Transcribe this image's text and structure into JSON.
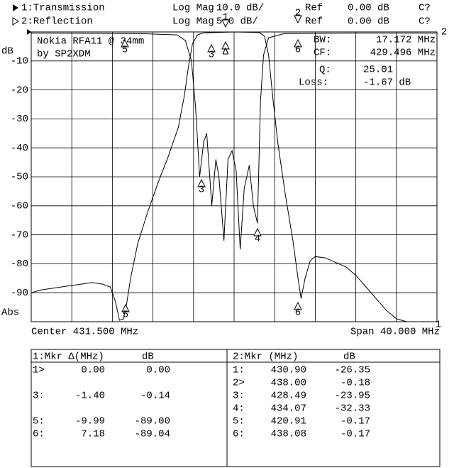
{
  "chart_data": {
    "type": "line",
    "header": [
      {
        "trace": "1:Transmission",
        "format": "Log Mag",
        "scale": "10.0 dB/",
        "ref_label": "Ref",
        "ref": "0.00 dB",
        "cal": "C?"
      },
      {
        "trace": "2:Reflection",
        "format": "Log Mag",
        "scale": "5.0 dB/",
        "ref_label": "Ref",
        "ref": "0.00 dB",
        "cal": "C?"
      }
    ],
    "title": "Nokia RFA11 @ 34mm",
    "subtitle": "by SP2XDM",
    "ylabel": "dB",
    "y_format_label": "Abs",
    "x_start_label": "Center 431.500 MHz",
    "x_end_label": "Span 40.000 MHz",
    "info": [
      {
        "label": "BW:",
        "value": "17.172 MHz"
      },
      {
        "label": "CF:",
        "value": "429.496 MHz"
      },
      {
        "label": "Q:",
        "value": "25.01"
      },
      {
        "label": "Loss:",
        "value": "-1.67 dB"
      }
    ],
    "plot_marker_labels": [
      "1",
      "2",
      "3",
      "Δ",
      "5",
      "6",
      "3",
      "4",
      "5",
      "6",
      "2",
      "1"
    ],
    "xlim": [
      411.5,
      451.5
    ],
    "xticks": [
      411.5,
      415.5,
      419.5,
      423.5,
      427.5,
      431.5,
      435.5,
      439.5,
      443.5,
      447.5,
      451.5
    ],
    "ylim": [
      -100,
      0
    ],
    "yticks": [
      -10,
      -20,
      -30,
      -40,
      -50,
      -60,
      -70,
      -80,
      -90
    ],
    "y2lim": [
      -50,
      0
    ],
    "grid": true,
    "series": [
      {
        "name": "Transmission",
        "color": "#000000",
        "x": [
          411.5,
          412.5,
          413.5,
          414.5,
          415.5,
          416.5,
          417.5,
          418.5,
          419.3,
          419.8,
          420.2,
          420.6,
          420.9,
          421.3,
          422,
          423,
          424,
          425,
          426,
          426.6,
          427,
          427.4,
          427.9,
          428.5,
          431.5,
          434,
          434.5,
          434.9,
          435.3,
          435.8,
          436.5,
          437.3,
          437.8,
          438.1,
          438.5,
          439,
          439.5,
          440.5,
          441.5,
          442.5,
          443.5,
          444.5,
          445.5,
          446.5,
          447.5,
          448.5,
          450,
          451.5
        ],
        "values": [
          -90,
          -89,
          -88.5,
          -88,
          -87.5,
          -87,
          -86.5,
          -87,
          -88,
          -93,
          -99.5,
          -99,
          -94,
          -85,
          -73,
          -62,
          -52,
          -43,
          -33,
          -22,
          -12,
          -4,
          -1,
          -0.3,
          0,
          -0.2,
          -1.5,
          -8,
          -22,
          -38,
          -55,
          -72,
          -85,
          -92,
          -85,
          -79,
          -77.5,
          -78,
          -79.5,
          -81,
          -84,
          -88,
          -92,
          -96,
          -99,
          -100,
          -100,
          -100
        ]
      },
      {
        "name": "Reflection",
        "color": "#000000",
        "axis": "y2",
        "x": [
          411.5,
          422.4,
          425.9,
          426.7,
          427.3,
          427.7,
          428.1,
          428.5,
          428.8,
          429.1,
          429.3,
          429.7,
          430.0,
          430.5,
          430.9,
          431.3,
          431.7,
          432.1,
          432.5,
          433.0,
          433.4,
          433.8,
          434.1,
          434.4,
          434.9,
          436.4,
          443.4,
          451.5
        ],
        "values": [
          -0.2,
          -0.3,
          -0.5,
          -1.5,
          -5,
          -13,
          -25,
          -19,
          -17.5,
          -25,
          -30,
          -22,
          -25,
          -36,
          -22,
          -20.5,
          -24,
          -37.5,
          -27,
          -23,
          -30,
          -33,
          -12,
          -4,
          -1,
          -0.3,
          -0.2,
          -0.2
        ]
      }
    ],
    "marker_tables": [
      {
        "header": [
          "1:Mkr Δ(MHz)",
          "dB"
        ],
        "rows": [
          [
            "1>",
            "0.00",
            "0.00"
          ],
          null,
          [
            "3:",
            "-1.40",
            "-0.14"
          ],
          null,
          [
            "5:",
            "-9.99",
            "-89.00"
          ],
          [
            "6:",
            "7.18",
            "-89.04"
          ]
        ]
      },
      {
        "header": [
          "2:Mkr (MHz)",
          "dB"
        ],
        "rows": [
          [
            "1:",
            "430.90",
            "-26.35"
          ],
          [
            "2>",
            "438.00",
            "-0.18"
          ],
          [
            "3:",
            "428.49",
            "-23.95"
          ],
          [
            "4:",
            "434.07",
            "-32.33"
          ],
          [
            "5:",
            "420.91",
            "-0.17"
          ],
          [
            "6:",
            "438.08",
            "-0.17"
          ]
        ]
      }
    ]
  }
}
